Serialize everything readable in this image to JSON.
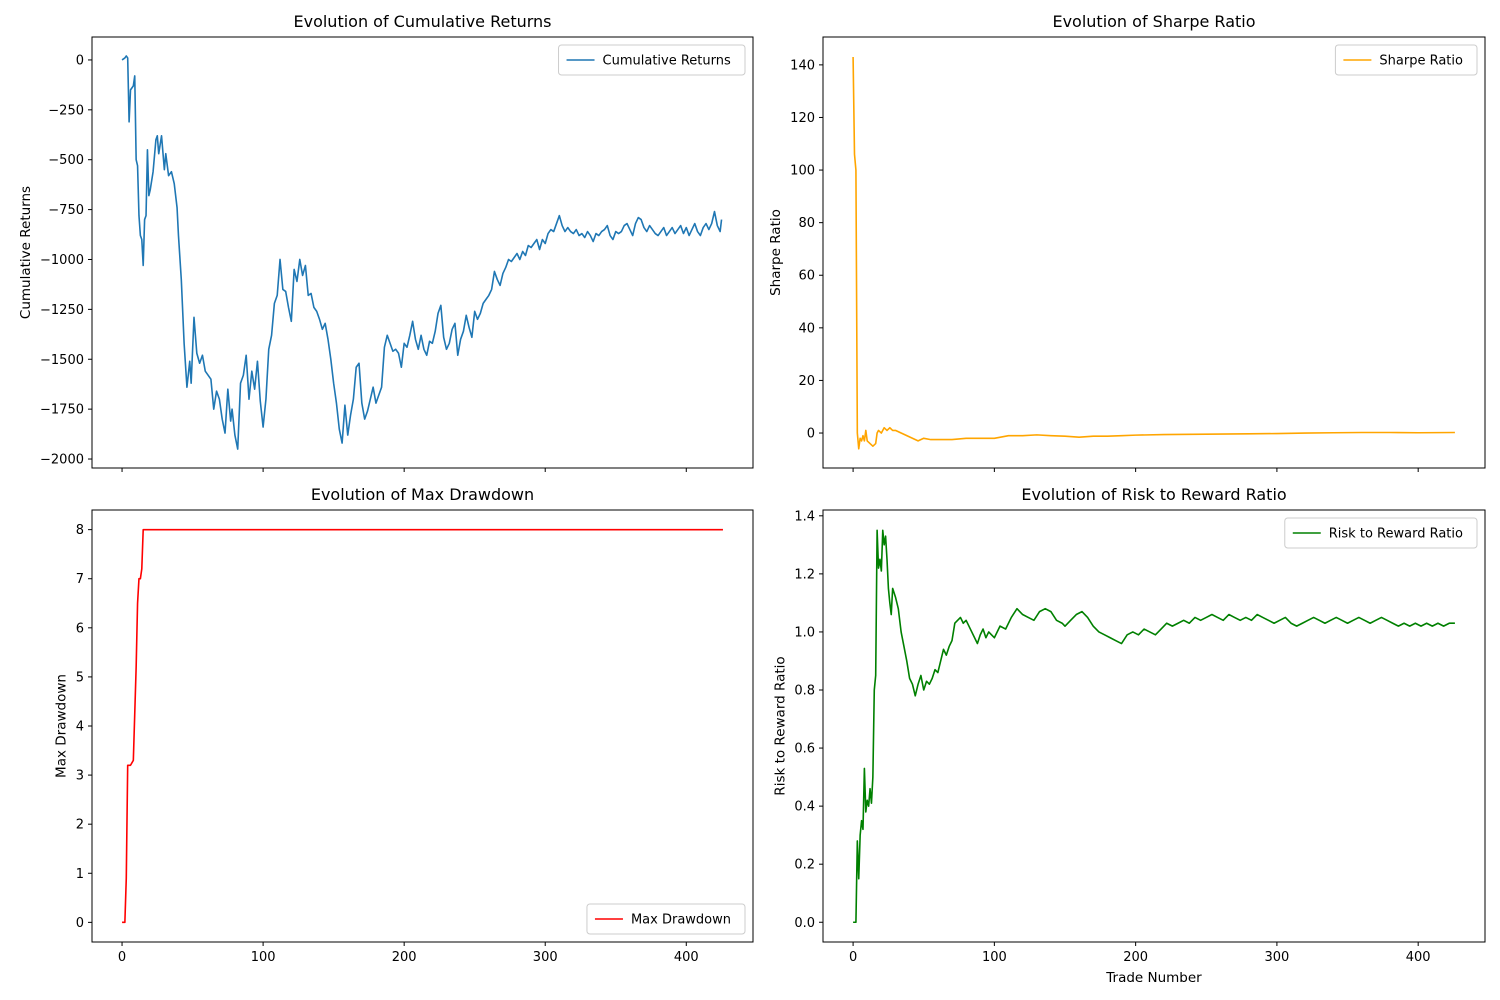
{
  "chart_data": [
    {
      "type": "line",
      "title": "Evolution of Cumulative Returns",
      "ylabel": "Cumulative Returns",
      "xlim": [
        -21.3,
        447.3
      ],
      "xticks": [
        0,
        100,
        200,
        300,
        400
      ],
      "xtick_labels_visible": false,
      "ylim": [
        -2045,
        115
      ],
      "yticks": [
        {
          "value": -2000,
          "label": "−2000"
        },
        {
          "value": -1750,
          "label": "−1750"
        },
        {
          "value": -1500,
          "label": "−1500"
        },
        {
          "value": -1250,
          "label": "−1250"
        },
        {
          "value": -1000,
          "label": "−1000"
        },
        {
          "value": -750,
          "label": "−750"
        },
        {
          "value": -500,
          "label": "−500"
        },
        {
          "value": -250,
          "label": "−250"
        },
        0
      ],
      "legend": "upper right",
      "x": [
        0,
        2,
        3,
        4,
        5,
        6,
        7,
        8,
        9,
        10,
        11,
        12,
        13,
        14,
        15,
        16,
        17,
        18,
        19,
        20,
        22,
        24,
        25,
        26,
        28,
        30,
        31,
        33,
        35,
        37,
        39,
        40,
        42,
        44,
        46,
        48,
        49,
        51,
        53,
        55,
        57,
        59,
        61,
        63,
        65,
        67,
        69,
        71,
        73,
        75,
        77,
        78,
        80,
        82,
        84,
        86,
        88,
        90,
        92,
        94,
        96,
        98,
        100,
        102,
        104,
        106,
        108,
        110,
        112,
        114,
        116,
        118,
        120,
        122,
        124,
        126,
        128,
        130,
        132,
        134,
        136,
        138,
        140,
        142,
        144,
        146,
        148,
        150,
        152,
        154,
        156,
        158,
        160,
        162,
        164,
        166,
        168,
        170,
        172,
        174,
        176,
        178,
        180,
        182,
        184,
        186,
        188,
        190,
        192,
        194,
        196,
        198,
        200,
        202,
        204,
        206,
        208,
        210,
        212,
        214,
        216,
        218,
        220,
        222,
        224,
        226,
        228,
        230,
        232,
        234,
        236,
        238,
        240,
        242,
        244,
        246,
        248,
        250,
        252,
        254,
        256,
        258,
        260,
        262,
        264,
        266,
        268,
        270,
        272,
        274,
        276,
        278,
        280,
        282,
        284,
        286,
        288,
        290,
        292,
        294,
        296,
        298,
        300,
        302,
        304,
        306,
        308,
        310,
        312,
        314,
        316,
        318,
        320,
        322,
        324,
        326,
        328,
        330,
        332,
        334,
        336,
        338,
        340,
        342,
        344,
        346,
        348,
        350,
        352,
        354,
        356,
        358,
        360,
        362,
        364,
        366,
        368,
        370,
        372,
        374,
        376,
        378,
        380,
        382,
        384,
        386,
        388,
        390,
        392,
        394,
        396,
        398,
        400,
        402,
        404,
        406,
        408,
        410,
        412,
        414,
        416,
        418,
        420,
        422,
        424,
        425
      ],
      "series": [
        {
          "name": "Cumulative Returns",
          "color": "#1f77b4",
          "values": [
            0,
            10,
            20,
            10,
            -310,
            -150,
            -140,
            -130,
            -80,
            -500,
            -530,
            -780,
            -880,
            -900,
            -1030,
            -800,
            -780,
            -450,
            -680,
            -650,
            -560,
            -400,
            -380,
            -470,
            -380,
            -550,
            -470,
            -580,
            -560,
            -620,
            -740,
            -880,
            -1100,
            -1420,
            -1640,
            -1510,
            -1620,
            -1290,
            -1470,
            -1520,
            -1480,
            -1560,
            -1580,
            -1600,
            -1750,
            -1660,
            -1700,
            -1800,
            -1870,
            -1650,
            -1810,
            -1750,
            -1880,
            -1950,
            -1620,
            -1580,
            -1480,
            -1700,
            -1560,
            -1650,
            -1510,
            -1710,
            -1840,
            -1700,
            -1450,
            -1380,
            -1220,
            -1180,
            -1000,
            -1150,
            -1160,
            -1240,
            -1310,
            -1050,
            -1110,
            -1000,
            -1080,
            -1030,
            -1180,
            -1170,
            -1240,
            -1260,
            -1300,
            -1350,
            -1320,
            -1400,
            -1500,
            -1620,
            -1720,
            -1850,
            -1920,
            -1730,
            -1880,
            -1780,
            -1700,
            -1540,
            -1520,
            -1720,
            -1800,
            -1760,
            -1700,
            -1640,
            -1720,
            -1680,
            -1640,
            -1440,
            -1380,
            -1420,
            -1460,
            -1450,
            -1470,
            -1540,
            -1420,
            -1440,
            -1380,
            -1310,
            -1400,
            -1450,
            -1380,
            -1450,
            -1480,
            -1410,
            -1420,
            -1360,
            -1270,
            -1230,
            -1390,
            -1450,
            -1420,
            -1350,
            -1320,
            -1480,
            -1400,
            -1360,
            -1280,
            -1340,
            -1390,
            -1260,
            -1300,
            -1270,
            -1220,
            -1200,
            -1180,
            -1150,
            -1060,
            -1100,
            -1130,
            -1070,
            -1040,
            -1000,
            -1010,
            -990,
            -970,
            -1000,
            -960,
            -980,
            -930,
            -940,
            -920,
            -900,
            -950,
            -900,
            -920,
            -870,
            -850,
            -860,
            -820,
            -780,
            -830,
            -860,
            -840,
            -860,
            -870,
            -850,
            -880,
            -870,
            -890,
            -860,
            -880,
            -910,
            -870,
            -880,
            -860,
            -850,
            -830,
            -880,
            -900,
            -860,
            -870,
            -860,
            -830,
            -820,
            -850,
            -880,
            -820,
            -790,
            -800,
            -840,
            -860,
            -830,
            -850,
            -870,
            -880,
            -860,
            -840,
            -880,
            -860,
            -840,
            -870,
            -850,
            -830,
            -870,
            -840,
            -880,
            -850,
            -820,
            -860,
            -880,
            -840,
            -820,
            -850,
            -820,
            -760,
            -830,
            -860,
            -800
          ]
        }
      ]
    },
    {
      "type": "line",
      "title": "Evolution of Sharpe Ratio",
      "ylabel": "Sharpe Ratio",
      "xlim": [
        -21.3,
        447.3
      ],
      "xticks": [
        0,
        100,
        200,
        300,
        400
      ],
      "xtick_labels_visible": false,
      "ylim": [
        -13.3,
        150.6
      ],
      "yticks": [
        0,
        20,
        40,
        60,
        80,
        100,
        120,
        140
      ],
      "legend": "upper right",
      "x": [
        0,
        1,
        2,
        3,
        4,
        5,
        6,
        7,
        8,
        9,
        10,
        12,
        14,
        16,
        17,
        18,
        20,
        22,
        24,
        26,
        28,
        30,
        34,
        38,
        42,
        46,
        50,
        55,
        60,
        70,
        80,
        90,
        100,
        110,
        120,
        130,
        140,
        150,
        160,
        170,
        180,
        190,
        200,
        220,
        240,
        260,
        280,
        300,
        320,
        340,
        360,
        380,
        400,
        426
      ],
      "series": [
        {
          "name": "Sharpe Ratio",
          "color": "orange",
          "values": [
            143,
            106,
            100,
            0,
            -6,
            -2,
            -3,
            -1,
            -3,
            1,
            -3,
            -4,
            -5,
            -4,
            0,
            1,
            0,
            2,
            1,
            2,
            1,
            1,
            0,
            -1,
            -2,
            -3,
            -2,
            -2.5,
            -2.5,
            -2.5,
            -2,
            -2,
            -2,
            -1,
            -1,
            -0.7,
            -1,
            -1.2,
            -1.6,
            -1.2,
            -1.2,
            -1,
            -0.8,
            -0.6,
            -0.5,
            -0.4,
            -0.3,
            -0.2,
            0,
            0.1,
            0.2,
            0.2,
            0.1,
            0.2
          ]
        }
      ]
    },
    {
      "type": "line",
      "title": "Evolution of Max Drawdown",
      "ylabel": "Max Drawdown",
      "xlim": [
        -21.3,
        447.3
      ],
      "xticks": [
        0,
        100,
        200,
        300,
        400
      ],
      "xtick_labels_visible": true,
      "ylim": [
        -0.4,
        8.4
      ],
      "yticks": [
        0,
        1,
        2,
        3,
        4,
        5,
        6,
        7,
        8
      ],
      "legend": "lower right",
      "x": [
        0,
        2,
        3,
        4,
        6,
        8,
        10,
        11,
        12,
        13,
        14,
        15,
        426
      ],
      "series": [
        {
          "name": "Max Drawdown",
          "color": "red",
          "values": [
            0,
            0,
            0.9,
            3.2,
            3.2,
            3.3,
            5.2,
            6.5,
            7,
            7,
            7.2,
            8,
            8
          ]
        }
      ]
    },
    {
      "type": "line",
      "title": "Evolution of Risk to Reward Ratio",
      "ylabel": "Risk to Reward Ratio",
      "xlabel": "Trade Number",
      "xlim": [
        -21.3,
        447.3
      ],
      "xticks": [
        0,
        100,
        200,
        300,
        400
      ],
      "xtick_labels_visible": true,
      "ylim": [
        -0.068,
        1.42
      ],
      "yticks": [
        {
          "value": 0,
          "label": "0.0"
        },
        0.2,
        0.4,
        0.6,
        0.8,
        {
          "value": 1,
          "label": "1.0"
        },
        1.2,
        1.4
      ],
      "legend": "upper right",
      "x": [
        0,
        2,
        3,
        4,
        5,
        6,
        7,
        8,
        9,
        10,
        11,
        12,
        13,
        14,
        15,
        16,
        17,
        18,
        19,
        20,
        21,
        22,
        23,
        24,
        25,
        26,
        27,
        28,
        30,
        32,
        34,
        36,
        38,
        40,
        42,
        44,
        46,
        48,
        50,
        52,
        54,
        56,
        58,
        60,
        62,
        64,
        66,
        68,
        70,
        72,
        74,
        76,
        78,
        80,
        84,
        88,
        90,
        92,
        94,
        96,
        100,
        104,
        108,
        112,
        116,
        120,
        124,
        128,
        132,
        136,
        140,
        144,
        148,
        150,
        154,
        158,
        162,
        166,
        170,
        174,
        178,
        182,
        186,
        190,
        194,
        198,
        202,
        206,
        210,
        214,
        218,
        222,
        226,
        230,
        234,
        238,
        242,
        246,
        250,
        254,
        258,
        262,
        266,
        270,
        274,
        278,
        282,
        286,
        290,
        294,
        298,
        302,
        306,
        310,
        314,
        318,
        322,
        326,
        330,
        334,
        338,
        342,
        346,
        350,
        354,
        358,
        362,
        366,
        370,
        374,
        378,
        382,
        386,
        390,
        394,
        398,
        402,
        406,
        410,
        414,
        418,
        422,
        426
      ],
      "series": [
        {
          "name": "Risk to Reward Ratio",
          "color": "green",
          "values": [
            0,
            0,
            0.28,
            0.15,
            0.3,
            0.35,
            0.32,
            0.53,
            0.38,
            0.42,
            0.4,
            0.46,
            0.41,
            0.5,
            0.8,
            0.85,
            1.35,
            1.22,
            1.25,
            1.21,
            1.35,
            1.3,
            1.33,
            1.25,
            1.15,
            1.1,
            1.06,
            1.15,
            1.12,
            1.08,
            1.0,
            0.95,
            0.9,
            0.84,
            0.82,
            0.78,
            0.82,
            0.85,
            0.8,
            0.83,
            0.82,
            0.84,
            0.87,
            0.86,
            0.9,
            0.94,
            0.92,
            0.95,
            0.97,
            1.03,
            1.04,
            1.05,
            1.03,
            1.04,
            1.0,
            0.96,
            0.99,
            1.01,
            0.98,
            1.0,
            0.98,
            1.02,
            1.01,
            1.05,
            1.08,
            1.06,
            1.05,
            1.04,
            1.07,
            1.08,
            1.07,
            1.04,
            1.03,
            1.02,
            1.04,
            1.06,
            1.07,
            1.05,
            1.02,
            1.0,
            0.99,
            0.98,
            0.97,
            0.96,
            0.99,
            1.0,
            0.99,
            1.01,
            1.0,
            0.99,
            1.01,
            1.03,
            1.02,
            1.03,
            1.04,
            1.03,
            1.05,
            1.04,
            1.05,
            1.06,
            1.05,
            1.04,
            1.06,
            1.05,
            1.04,
            1.05,
            1.04,
            1.06,
            1.05,
            1.04,
            1.03,
            1.04,
            1.05,
            1.03,
            1.02,
            1.03,
            1.04,
            1.05,
            1.04,
            1.03,
            1.04,
            1.05,
            1.04,
            1.03,
            1.04,
            1.05,
            1.04,
            1.03,
            1.04,
            1.05,
            1.04,
            1.03,
            1.02,
            1.03,
            1.02,
            1.03,
            1.02,
            1.03,
            1.02,
            1.03,
            1.02,
            1.03,
            1.03
          ]
        }
      ]
    }
  ]
}
